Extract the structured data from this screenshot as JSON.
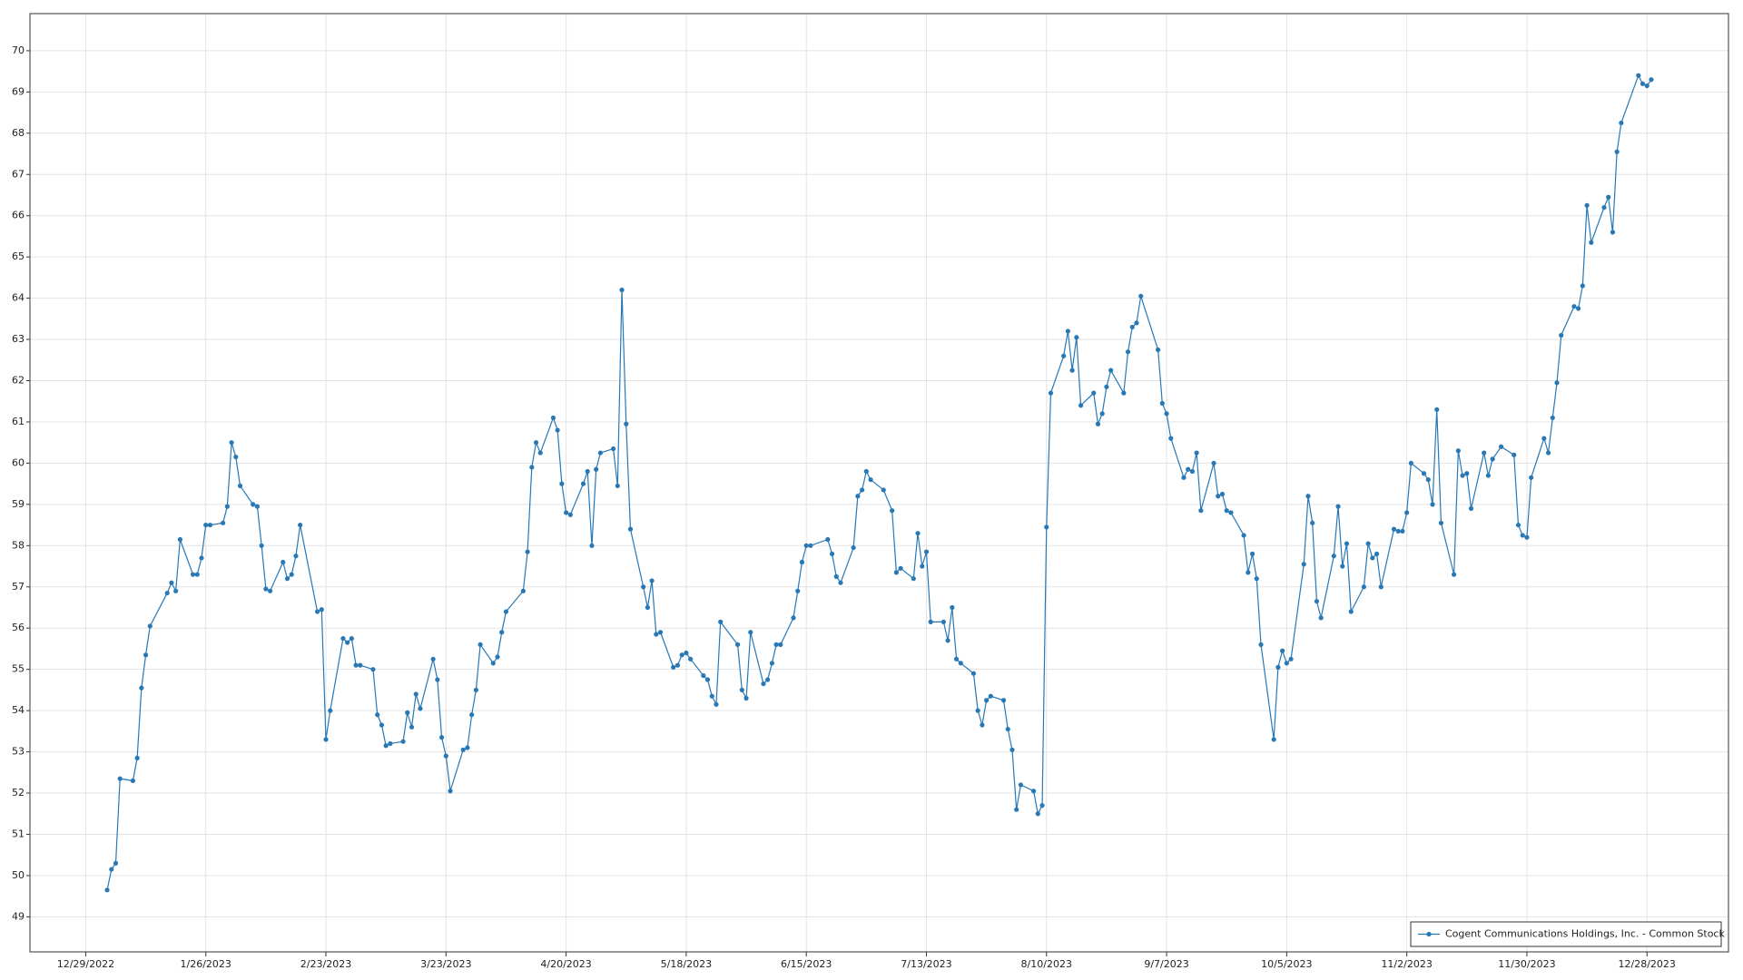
{
  "chart_data": {
    "type": "line",
    "x": [
      "1/3/2023",
      "1/4/2023",
      "1/5/2023",
      "1/6/2023",
      "1/9/2023",
      "1/10/2023",
      "1/11/2023",
      "1/12/2023",
      "1/13/2023",
      "1/17/2023",
      "1/18/2023",
      "1/19/2023",
      "1/20/2023",
      "1/23/2023",
      "1/24/2023",
      "1/25/2023",
      "1/26/2023",
      "1/27/2023",
      "1/30/2023",
      "1/31/2023",
      "2/1/2023",
      "2/2/2023",
      "2/3/2023",
      "2/6/2023",
      "2/7/2023",
      "2/8/2023",
      "2/9/2023",
      "2/10/2023",
      "2/13/2023",
      "2/14/2023",
      "2/15/2023",
      "2/16/2023",
      "2/17/2023",
      "2/21/2023",
      "2/22/2023",
      "2/23/2023",
      "2/24/2023",
      "2/27/2023",
      "2/28/2023",
      "3/1/2023",
      "3/2/2023",
      "3/3/2023",
      "3/6/2023",
      "3/7/2023",
      "3/8/2023",
      "3/9/2023",
      "3/10/2023",
      "3/13/2023",
      "3/14/2023",
      "3/15/2023",
      "3/16/2023",
      "3/17/2023",
      "3/20/2023",
      "3/21/2023",
      "3/22/2023",
      "3/23/2023",
      "3/24/2023",
      "3/27/2023",
      "3/28/2023",
      "3/29/2023",
      "3/30/2023",
      "3/31/2023",
      "4/3/2023",
      "4/4/2023",
      "4/5/2023",
      "4/6/2023",
      "4/10/2023",
      "4/11/2023",
      "4/12/2023",
      "4/13/2023",
      "4/14/2023",
      "4/17/2023",
      "4/18/2023",
      "4/19/2023",
      "4/20/2023",
      "4/21/2023",
      "4/24/2023",
      "4/25/2023",
      "4/26/2023",
      "4/27/2023",
      "4/28/2023",
      "5/1/2023",
      "5/2/2023",
      "5/3/2023",
      "5/4/2023",
      "5/5/2023",
      "5/8/2023",
      "5/9/2023",
      "5/10/2023",
      "5/11/2023",
      "5/12/2023",
      "5/15/2023",
      "5/16/2023",
      "5/17/2023",
      "5/18/2023",
      "5/19/2023",
      "5/22/2023",
      "5/23/2023",
      "5/24/2023",
      "5/25/2023",
      "5/26/2023",
      "5/30/2023",
      "5/31/2023",
      "6/1/2023",
      "6/2/2023",
      "6/5/2023",
      "6/6/2023",
      "6/7/2023",
      "6/8/2023",
      "6/9/2023",
      "6/12/2023",
      "6/13/2023",
      "6/14/2023",
      "6/15/2023",
      "6/16/2023",
      "6/20/2023",
      "6/21/2023",
      "6/22/2023",
      "6/23/2023",
      "6/26/2023",
      "6/27/2023",
      "6/28/2023",
      "6/29/2023",
      "6/30/2023",
      "7/3/2023",
      "7/5/2023",
      "7/6/2023",
      "7/7/2023",
      "7/10/2023",
      "7/11/2023",
      "7/12/2023",
      "7/13/2023",
      "7/14/2023",
      "7/17/2023",
      "7/18/2023",
      "7/19/2023",
      "7/20/2023",
      "7/21/2023",
      "7/24/2023",
      "7/25/2023",
      "7/26/2023",
      "7/27/2023",
      "7/28/2023",
      "7/31/2023",
      "8/1/2023",
      "8/2/2023",
      "8/3/2023",
      "8/4/2023",
      "8/7/2023",
      "8/8/2023",
      "8/9/2023",
      "8/10/2023",
      "8/11/2023",
      "8/14/2023",
      "8/15/2023",
      "8/16/2023",
      "8/17/2023",
      "8/18/2023",
      "8/21/2023",
      "8/22/2023",
      "8/23/2023",
      "8/24/2023",
      "8/25/2023",
      "8/28/2023",
      "8/29/2023",
      "8/30/2023",
      "8/31/2023",
      "9/1/2023",
      "9/5/2023",
      "9/6/2023",
      "9/7/2023",
      "9/8/2023",
      "9/11/2023",
      "9/12/2023",
      "9/13/2023",
      "9/14/2023",
      "9/15/2023",
      "9/18/2023",
      "9/19/2023",
      "9/20/2023",
      "9/21/2023",
      "9/22/2023",
      "9/25/2023",
      "9/26/2023",
      "9/27/2023",
      "9/28/2023",
      "9/29/2023",
      "10/2/2023",
      "10/3/2023",
      "10/4/2023",
      "10/5/2023",
      "10/6/2023",
      "10/9/2023",
      "10/10/2023",
      "10/11/2023",
      "10/12/2023",
      "10/13/2023",
      "10/16/2023",
      "10/17/2023",
      "10/18/2023",
      "10/19/2023",
      "10/20/2023",
      "10/23/2023",
      "10/24/2023",
      "10/25/2023",
      "10/26/2023",
      "10/27/2023",
      "10/30/2023",
      "10/31/2023",
      "11/1/2023",
      "11/2/2023",
      "11/3/2023",
      "11/6/2023",
      "11/7/2023",
      "11/8/2023",
      "11/9/2023",
      "11/10/2023",
      "11/13/2023",
      "11/14/2023",
      "11/15/2023",
      "11/16/2023",
      "11/17/2023",
      "11/20/2023",
      "11/21/2023",
      "11/22/2023",
      "11/24/2023",
      "11/27/2023",
      "11/28/2023",
      "11/29/2023",
      "11/30/2023",
      "12/1/2023",
      "12/4/2023",
      "12/5/2023",
      "12/6/2023",
      "12/7/2023",
      "12/8/2023",
      "12/11/2023",
      "12/12/2023",
      "12/13/2023",
      "12/14/2023",
      "12/15/2023",
      "12/18/2023",
      "12/19/2023",
      "12/20/2023",
      "12/21/2023",
      "12/22/2023",
      "12/26/2023",
      "12/27/2023",
      "12/28/2023",
      "12/29/2023"
    ],
    "series": [
      {
        "name": "Cogent Communications Holdings, Inc. - Common Stock",
        "color": "#2878b5",
        "values": [
          49.65,
          50.15,
          50.3,
          52.35,
          52.3,
          52.85,
          54.55,
          55.35,
          56.05,
          56.85,
          57.1,
          56.9,
          58.15,
          57.3,
          57.3,
          57.7,
          58.5,
          58.5,
          58.55,
          58.95,
          60.5,
          60.15,
          59.45,
          59.0,
          58.95,
          58.0,
          56.95,
          56.9,
          57.6,
          57.2,
          57.3,
          57.75,
          58.5,
          56.4,
          56.45,
          53.3,
          54.0,
          55.75,
          55.65,
          55.75,
          55.1,
          55.1,
          55.0,
          53.9,
          53.65,
          53.15,
          53.2,
          53.25,
          53.95,
          53.6,
          54.4,
          54.05,
          55.25,
          54.75,
          53.35,
          52.9,
          52.05,
          53.05,
          53.1,
          53.9,
          54.5,
          55.6,
          55.15,
          55.3,
          55.9,
          56.4,
          56.9,
          57.85,
          59.9,
          60.5,
          60.25,
          61.1,
          60.8,
          59.5,
          58.8,
          58.75,
          59.5,
          59.8,
          58.0,
          59.85,
          60.25,
          60.35,
          59.45,
          64.2,
          60.95,
          58.4,
          57.0,
          56.5,
          57.15,
          55.85,
          55.9,
          55.05,
          55.1,
          55.35,
          55.4,
          55.25,
          54.85,
          54.75,
          54.35,
          54.15,
          56.15,
          55.6,
          54.5,
          54.3,
          55.9,
          54.65,
          54.75,
          55.15,
          55.6,
          55.6,
          56.25,
          56.9,
          57.6,
          58.0,
          58.0,
          58.15,
          57.8,
          57.25,
          57.1,
          57.95,
          59.2,
          59.35,
          59.8,
          59.6,
          59.35,
          58.85,
          57.35,
          57.45,
          57.2,
          58.3,
          57.5,
          57.85,
          56.15,
          56.15,
          55.7,
          56.5,
          55.25,
          55.15,
          54.9,
          54.0,
          53.65,
          54.25,
          54.35,
          54.25,
          53.55,
          53.05,
          51.6,
          52.2,
          52.05,
          51.5,
          51.7,
          58.45,
          61.7,
          62.6,
          63.2,
          62.25,
          63.05,
          61.4,
          61.7,
          60.95,
          61.2,
          61.85,
          62.25,
          61.7,
          62.7,
          63.3,
          63.4,
          64.05,
          62.75,
          61.45,
          61.2,
          60.6,
          59.65,
          59.85,
          59.8,
          60.25,
          58.85,
          60.0,
          59.2,
          59.25,
          58.85,
          58.8,
          58.25,
          57.35,
          57.8,
          57.2,
          55.6,
          53.3,
          55.05,
          55.45,
          55.15,
          55.25,
          57.55,
          59.2,
          58.55,
          56.65,
          56.25,
          57.75,
          58.95,
          57.5,
          58.05,
          56.4,
          57.0,
          58.05,
          57.7,
          57.8,
          57.0,
          58.4,
          58.35,
          58.35,
          58.8,
          60.0,
          59.75,
          59.6,
          59.0,
          61.3,
          58.55,
          57.3,
          60.3,
          59.7,
          59.75,
          58.9,
          60.25,
          59.7,
          60.1,
          60.4,
          60.2,
          58.5,
          58.25,
          58.2,
          59.65,
          60.6,
          60.25,
          61.1,
          61.95,
          63.1,
          63.8,
          63.75,
          64.3,
          66.25,
          65.35,
          66.2,
          66.45,
          65.6,
          67.55,
          68.25,
          69.4,
          69.2,
          69.15,
          69.3
        ]
      }
    ],
    "xlim": [
      "12/16/2022",
      "1/16/2024"
    ],
    "xticks": [
      "12/29/2022",
      "1/26/2023",
      "2/23/2023",
      "3/23/2023",
      "4/20/2023",
      "5/18/2023",
      "6/15/2023",
      "7/13/2023",
      "8/10/2023",
      "9/7/2023",
      "10/5/2023",
      "11/2/2023",
      "11/30/2023",
      "12/28/2023"
    ],
    "ylim": [
      48.15,
      70.9
    ],
    "yticks": [
      49,
      50,
      51,
      52,
      53,
      54,
      55,
      56,
      57,
      58,
      59,
      60,
      61,
      62,
      63,
      64,
      65,
      66,
      67,
      68,
      69,
      70
    ],
    "grid": true,
    "legend": "lower right"
  }
}
